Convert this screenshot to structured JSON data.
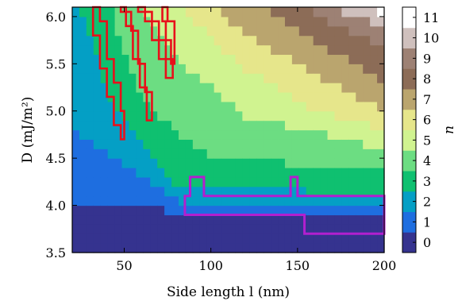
{
  "chart_data": {
    "type": "heatmap",
    "xlabel": "Side length l (nm)",
    "ylabel": "D (mJ/m²)",
    "colorbar_label": "n",
    "xlim": [
      20,
      200
    ],
    "ylim": [
      3.5,
      6.1
    ],
    "x_ticks": [
      "50",
      "100",
      "150",
      "200"
    ],
    "y_ticks": [
      "3.5",
      "4.0",
      "4.5",
      "5.0",
      "5.5",
      "6.0"
    ],
    "colorbar_ticks": [
      "0",
      "1",
      "2",
      "3",
      "4",
      "5",
      "6",
      "7",
      "8",
      "9",
      "10",
      "11"
    ],
    "colormap": [
      "#35338f",
      "#1e6ee0",
      "#049fc5",
      "#0fc070",
      "#6cdd82",
      "#d0f390",
      "#e6e68b",
      "#baa56e",
      "#8c6c57",
      "#9d8174",
      "#cfc0bd",
      "#ffffff"
    ],
    "boundaries": [
      {
        "n": 1,
        "points": [
          [
            20,
            4.0
          ],
          [
            60,
            4.0
          ],
          [
            85,
            3.9
          ],
          [
            200,
            3.85
          ]
        ]
      },
      {
        "n": 2,
        "points": [
          [
            20,
            4.8
          ],
          [
            55,
            4.4
          ],
          [
            80,
            4.05
          ],
          [
            200,
            3.98
          ]
        ]
      },
      {
        "n": 3,
        "points": [
          [
            24,
            6.1
          ],
          [
            45,
            5.0
          ],
          [
            80,
            4.2
          ],
          [
            200,
            4.12
          ]
        ]
      },
      {
        "n": 4,
        "points": [
          [
            42,
            6.1
          ],
          [
            60,
            5.1
          ],
          [
            100,
            4.5
          ],
          [
            200,
            4.38
          ]
        ]
      },
      {
        "n": 5,
        "points": [
          [
            58,
            6.1
          ],
          [
            80,
            5.55
          ],
          [
            120,
            4.95
          ],
          [
            200,
            4.6
          ]
        ]
      },
      {
        "n": 6,
        "points": [
          [
            82,
            6.1
          ],
          [
            115,
            5.5
          ],
          [
            160,
            5.0
          ],
          [
            200,
            4.8
          ]
        ]
      },
      {
        "n": 7,
        "points": [
          [
            100,
            6.1
          ],
          [
            140,
            5.6
          ],
          [
            180,
            5.2
          ],
          [
            200,
            5.0
          ]
        ]
      },
      {
        "n": 8,
        "points": [
          [
            128,
            6.1
          ],
          [
            160,
            5.75
          ],
          [
            200,
            5.3
          ]
        ]
      },
      {
        "n": 9,
        "points": [
          [
            152,
            6.1
          ],
          [
            180,
            5.85
          ],
          [
            200,
            5.65
          ]
        ]
      },
      {
        "n": 10,
        "points": [
          [
            170,
            6.1
          ],
          [
            190,
            5.95
          ],
          [
            200,
            5.85
          ]
        ]
      },
      {
        "n": 11,
        "points": [
          [
            192,
            6.1
          ],
          [
            200,
            6.0
          ]
        ]
      }
    ],
    "red_regions": [
      [
        [
          32,
          6.1
        ],
        [
          36,
          6.1
        ],
        [
          36,
          5.95
        ],
        [
          40,
          5.95
        ],
        [
          40,
          5.55
        ],
        [
          44,
          5.55
        ],
        [
          44,
          5.3
        ],
        [
          48,
          5.3
        ],
        [
          48,
          5.0
        ],
        [
          50,
          5.0
        ],
        [
          50,
          4.7
        ],
        [
          48,
          4.7
        ],
        [
          48,
          4.85
        ],
        [
          44,
          4.85
        ],
        [
          44,
          5.15
        ],
        [
          40,
          5.15
        ],
        [
          40,
          5.45
        ],
        [
          36,
          5.45
        ],
        [
          36,
          5.8
        ],
        [
          32,
          5.8
        ]
      ],
      [
        [
          48,
          6.1
        ],
        [
          51,
          6.1
        ],
        [
          51,
          5.9
        ],
        [
          55,
          5.9
        ],
        [
          55,
          5.55
        ],
        [
          59,
          5.55
        ],
        [
          59,
          5.25
        ],
        [
          63,
          5.25
        ],
        [
          63,
          4.9
        ],
        [
          66,
          4.9
        ],
        [
          66,
          5.2
        ],
        [
          62,
          5.2
        ],
        [
          62,
          5.5
        ],
        [
          58,
          5.5
        ],
        [
          58,
          5.85
        ],
        [
          54,
          5.85
        ],
        [
          54,
          6.05
        ],
        [
          48,
          6.05
        ]
      ],
      [
        [
          58,
          6.1
        ],
        [
          62,
          6.1
        ],
        [
          62,
          5.95
        ],
        [
          66,
          5.95
        ],
        [
          66,
          5.75
        ],
        [
          70,
          5.75
        ],
        [
          70,
          5.55
        ],
        [
          74,
          5.55
        ],
        [
          74,
          5.35
        ],
        [
          78,
          5.35
        ],
        [
          78,
          5.55
        ],
        [
          74,
          5.55
        ],
        [
          74,
          5.75
        ],
        [
          70,
          5.75
        ],
        [
          70,
          5.95
        ],
        [
          66,
          5.95
        ],
        [
          66,
          6.05
        ],
        [
          58,
          6.05
        ]
      ],
      [
        [
          72,
          6.1
        ],
        [
          75,
          6.1
        ],
        [
          75,
          5.95
        ],
        [
          79,
          5.95
        ],
        [
          79,
          5.5
        ],
        [
          77,
          5.5
        ],
        [
          77,
          5.75
        ],
        [
          74,
          5.75
        ],
        [
          74,
          5.95
        ],
        [
          72,
          5.95
        ]
      ]
    ],
    "magenta_region": [
      [
        85,
        3.9
      ],
      [
        85,
        4.1
      ],
      [
        88,
        4.1
      ],
      [
        88,
        4.3
      ],
      [
        96,
        4.3
      ],
      [
        96,
        4.1
      ],
      [
        146,
        4.1
      ],
      [
        146,
        4.3
      ],
      [
        150,
        4.3
      ],
      [
        150,
        4.1
      ],
      [
        200,
        4.1
      ],
      [
        200,
        3.7
      ],
      [
        154,
        3.7
      ],
      [
        154,
        3.9
      ]
    ]
  }
}
